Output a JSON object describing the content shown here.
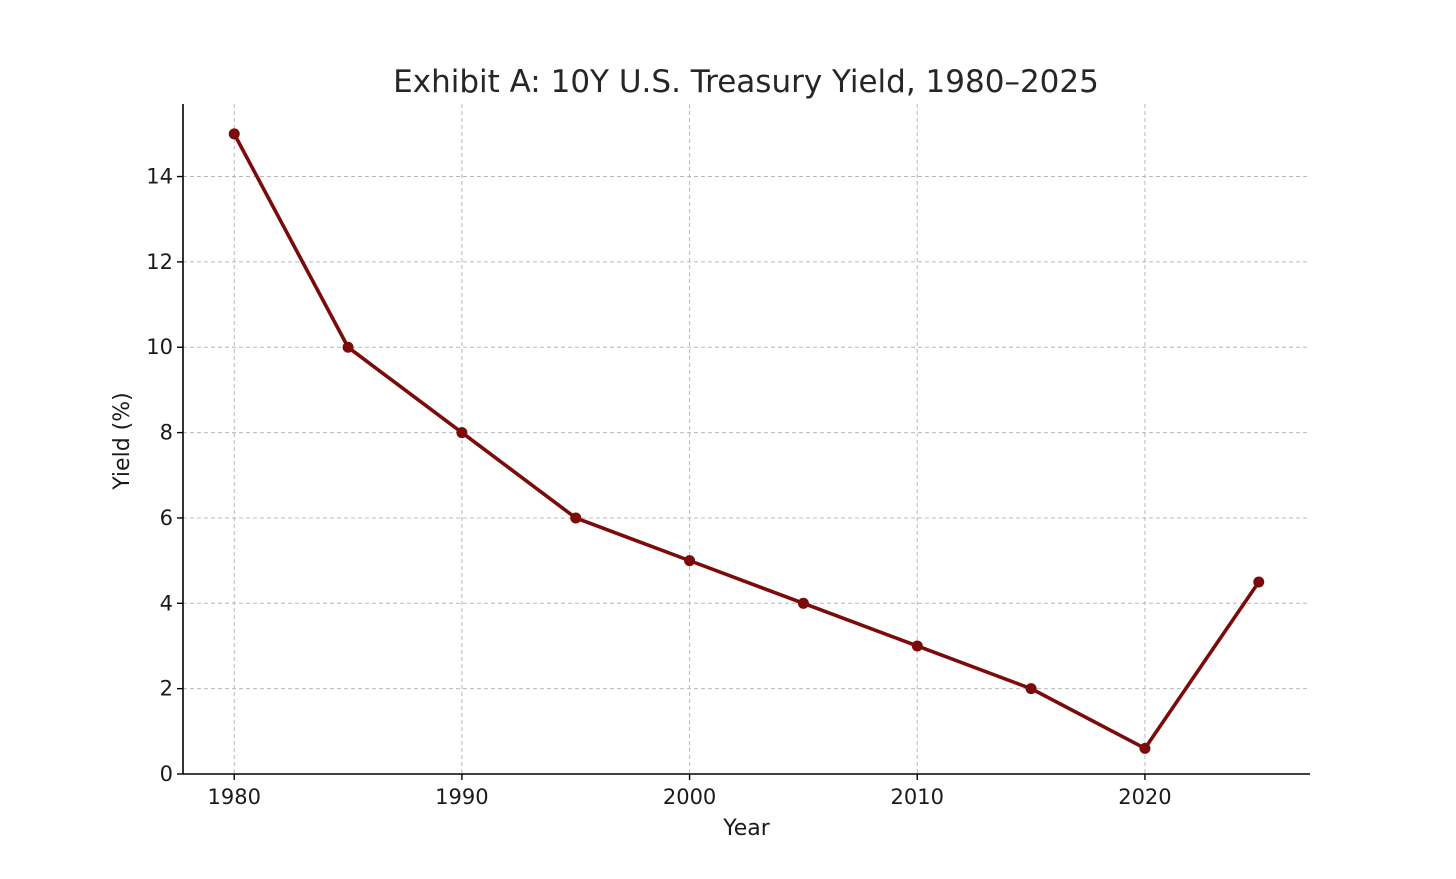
{
  "chart_data": {
    "type": "line",
    "title": "Exhibit A: 10Y U.S. Treasury Yield, 1980–2025",
    "xlabel": "Year",
    "ylabel": "Yield (%)",
    "x": [
      1980,
      1985,
      1990,
      1995,
      2000,
      2005,
      2010,
      2015,
      2020,
      2025
    ],
    "series": [
      {
        "values": [
          15,
          10,
          8,
          6,
          5,
          4,
          3,
          2,
          0.6,
          4.5
        ]
      }
    ],
    "xlim": [
      1977.75,
      2027.25
    ],
    "ylim": [
      0,
      15.7
    ],
    "xticks": [
      "1980",
      "1990",
      "2000",
      "2010",
      "2020"
    ],
    "yticks": [
      "0",
      "2",
      "4",
      "6",
      "8",
      "10",
      "12",
      "14"
    ],
    "grid": true,
    "line_color": "#7b0a0a"
  }
}
